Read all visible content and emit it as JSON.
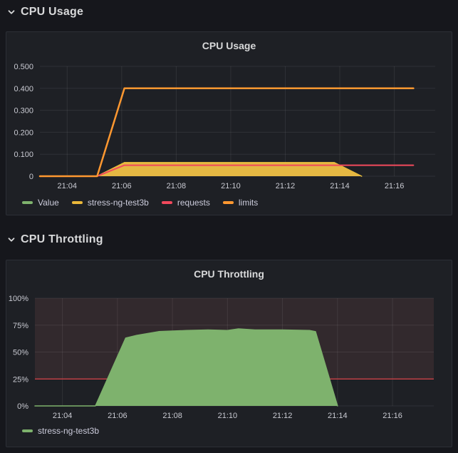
{
  "sections": [
    {
      "title": "CPU Usage"
    },
    {
      "title": "CPU Throttling"
    }
  ],
  "panels": [
    {
      "title": "CPU Usage"
    },
    {
      "title": "CPU Throttling"
    }
  ],
  "colors": {
    "green": "#7eb26d",
    "yellow": "#e5b843",
    "yellow_line": "#eab839",
    "red": "#f2495c",
    "orange": "#ff9830",
    "threshold_red": "#bf4045",
    "threshold_region": "#32292d",
    "grid": "rgba(255,255,255,0.08)"
  },
  "chart_data": [
    {
      "id": "cpu-usage",
      "type": "area",
      "title": "CPU Usage",
      "x_domain": [
        3.0,
        17.5
      ],
      "x_ticks": [
        {
          "v": 4,
          "label": "21:04"
        },
        {
          "v": 6,
          "label": "21:06"
        },
        {
          "v": 8,
          "label": "21:08"
        },
        {
          "v": 10,
          "label": "21:10"
        },
        {
          "v": 12,
          "label": "21:12"
        },
        {
          "v": 14,
          "label": "21:14"
        },
        {
          "v": 16,
          "label": "21:16"
        }
      ],
      "y_domain": [
        0,
        0.5
      ],
      "y_ticks": [
        {
          "v": 0,
          "label": "0"
        },
        {
          "v": 0.1,
          "label": "0.100"
        },
        {
          "v": 0.2,
          "label": "0.200"
        },
        {
          "v": 0.3,
          "label": "0.300"
        },
        {
          "v": 0.4,
          "label": "0.400"
        },
        {
          "v": 0.5,
          "label": "0.500"
        }
      ],
      "grid_color": "rgba(255,255,255,0.08)",
      "series": [
        {
          "name": "Value",
          "color": "#7eb26d",
          "fill": true,
          "fill_color": "#7eb26d",
          "fill_opacity": 1,
          "width": 1.5,
          "points": [
            [
              3,
              0
            ],
            [
              5.1,
              0
            ],
            [
              6.1,
              0.062
            ],
            [
              13.8,
              0.062
            ],
            [
              14.8,
              0
            ]
          ]
        },
        {
          "name": "stress-ng-test3b",
          "color": "#eab839",
          "fill": true,
          "fill_color": "#e5b843",
          "fill_opacity": 1,
          "width": 1.5,
          "points": [
            [
              3,
              0
            ],
            [
              5.1,
              0
            ],
            [
              6.1,
              0.062
            ],
            [
              13.8,
              0.062
            ],
            [
              14.8,
              0
            ]
          ]
        },
        {
          "name": "requests",
          "color": "#f2495c",
          "fill": false,
          "width": 2,
          "points": [
            [
              3,
              0
            ],
            [
              5.1,
              0
            ],
            [
              6.1,
              0.05
            ],
            [
              16.7,
              0.05
            ]
          ]
        },
        {
          "name": "limits",
          "color": "#ff9830",
          "fill": false,
          "width": 2.5,
          "points": [
            [
              3,
              0
            ],
            [
              5.1,
              0
            ],
            [
              6.1,
              0.4
            ],
            [
              16.7,
              0.4
            ]
          ]
        }
      ]
    },
    {
      "id": "cpu-throttling",
      "type": "area",
      "title": "CPU Throttling",
      "x_domain": [
        3.0,
        17.5
      ],
      "x_ticks": [
        {
          "v": 4,
          "label": "21:04"
        },
        {
          "v": 6,
          "label": "21:06"
        },
        {
          "v": 8,
          "label": "21:08"
        },
        {
          "v": 10,
          "label": "21:10"
        },
        {
          "v": 12,
          "label": "21:12"
        },
        {
          "v": 14,
          "label": "21:14"
        },
        {
          "v": 16,
          "label": "21:16"
        }
      ],
      "y_domain": [
        0,
        100
      ],
      "y_ticks": [
        {
          "v": 0,
          "label": "0%"
        },
        {
          "v": 25,
          "label": "25%"
        },
        {
          "v": 50,
          "label": "50%"
        },
        {
          "v": 75,
          "label": "75%"
        },
        {
          "v": 100,
          "label": "100%"
        }
      ],
      "grid_color": "rgba(255,255,255,0.08)",
      "threshold": {
        "value": 25,
        "line_color": "#bf4045",
        "region_color": "#32292d"
      },
      "series": [
        {
          "name": "stress-ng-test3b",
          "color": "#7eb26d",
          "fill": true,
          "fill_color": "#7eb26d",
          "fill_opacity": 1,
          "width": 1.5,
          "points": [
            [
              3,
              0
            ],
            [
              5.2,
              0
            ],
            [
              6.3,
              63
            ],
            [
              6.7,
              65.5
            ],
            [
              7.5,
              69
            ],
            [
              8.5,
              70
            ],
            [
              9.3,
              70.5
            ],
            [
              10,
              70
            ],
            [
              10.4,
              71.5
            ],
            [
              11,
              70.5
            ],
            [
              12,
              70.5
            ],
            [
              13,
              70
            ],
            [
              13.2,
              69
            ],
            [
              14,
              0
            ]
          ]
        }
      ]
    }
  ]
}
